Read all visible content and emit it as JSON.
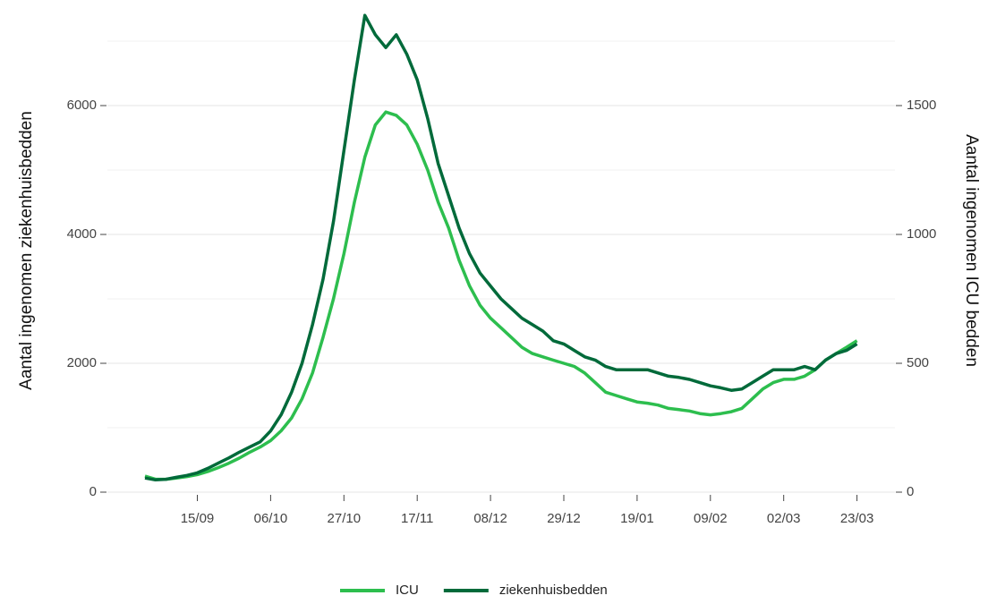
{
  "chart_data": {
    "type": "line",
    "y_label": "Aantal ingenomen ziekenhuisbedden",
    "y2_label": "Aantal ingenomen ICU bedden",
    "categories": [
      null,
      null,
      null,
      null,
      null,
      "15/09",
      null,
      null,
      null,
      null,
      null,
      null,
      "06/10",
      null,
      null,
      null,
      null,
      null,
      null,
      "27/10",
      null,
      null,
      null,
      null,
      null,
      null,
      "17/11",
      null,
      null,
      null,
      null,
      null,
      null,
      "08/12",
      null,
      null,
      null,
      null,
      null,
      null,
      "29/12",
      null,
      null,
      null,
      null,
      null,
      null,
      "19/01",
      null,
      null,
      null,
      null,
      null,
      null,
      "09/02",
      null,
      null,
      null,
      null,
      null,
      null,
      "02/03",
      null,
      null,
      null,
      null,
      null,
      null,
      "23/03"
    ],
    "series": [
      {
        "name": "ICU",
        "color": "#2dbe4e",
        "axis": "y2",
        "values": [
          62,
          50,
          50,
          55,
          60,
          68,
          80,
          95,
          112,
          132,
          155,
          175,
          200,
          238,
          288,
          362,
          462,
          600,
          750,
          925,
          1125,
          1300,
          1425,
          1475,
          1462,
          1425,
          1350,
          1250,
          1125,
          1025,
          900,
          800,
          725,
          675,
          638,
          600,
          562,
          538,
          525,
          512,
          500,
          488,
          462,
          425,
          388,
          375,
          362,
          350,
          345,
          338,
          325,
          320,
          315,
          305,
          300,
          305,
          312,
          325,
          362,
          400,
          425,
          438,
          438,
          450,
          475,
          512,
          538,
          562,
          588
        ]
      },
      {
        "name": "ziekenhuisbedden",
        "color": "#006a3a",
        "values": [
          220,
          190,
          200,
          230,
          260,
          300,
          370,
          450,
          530,
          620,
          700,
          780,
          950,
          1200,
          1550,
          2000,
          2600,
          3300,
          4200,
          5300,
          6400,
          7400,
          7100,
          6900,
          7100,
          6800,
          6400,
          5800,
          5100,
          4600,
          4100,
          3700,
          3400,
          3200,
          3000,
          2850,
          2700,
          2600,
          2500,
          2350,
          2300,
          2200,
          2100,
          2050,
          1950,
          1900,
          1900,
          1900,
          1900,
          1850,
          1800,
          1780,
          1750,
          1700,
          1650,
          1620,
          1580,
          1600,
          1700,
          1800,
          1900,
          1900,
          1900,
          1950,
          1900,
          2050,
          2150,
          2200,
          2300
        ]
      }
    ],
    "ylim": [
      0,
      7500
    ],
    "yticks": [
      0,
      2000,
      4000,
      6000
    ],
    "yminor": [
      1000,
      3000,
      5000,
      7000
    ],
    "y2lim": [
      0,
      1875
    ],
    "y2ticks": [
      0,
      500,
      1000,
      1500
    ],
    "grid": true,
    "legend": "bottom"
  }
}
